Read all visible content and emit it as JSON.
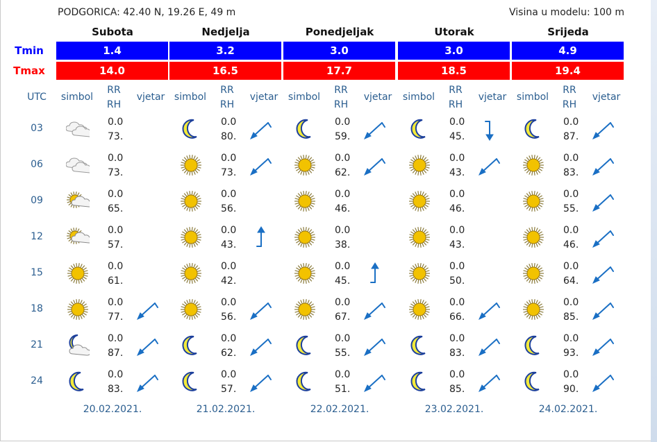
{
  "header": {
    "location": "PODGORICA: 42.40 N, 19.26 E, 49 m",
    "model_height": "Visina u modelu: 100 m"
  },
  "labels": {
    "tmin": "Tmin",
    "tmax": "Tmax",
    "utc": "UTC"
  },
  "col_labels": {
    "symbol": "simbol",
    "rr": "RR",
    "rh": "RH",
    "wind": "vjetar"
  },
  "colors": {
    "tmin_bg": "#0000ff",
    "tmax_bg": "#ff0000",
    "link_text": "#2a5d8f",
    "wind_arrow": "#1a6fc4"
  },
  "hours": [
    "03",
    "06",
    "09",
    "12",
    "15",
    "18",
    "21",
    "24"
  ],
  "days": [
    {
      "name": "Subota",
      "tmin": "1.4",
      "tmax": "14.0",
      "date": "20.02.2021.",
      "slots": [
        {
          "icon": "clouds-icon",
          "rr": "0.0",
          "rh": "73.",
          "wind": "none"
        },
        {
          "icon": "clouds-icon",
          "rr": "0.0",
          "rh": "73.",
          "wind": "none"
        },
        {
          "icon": "sun-cloud-icon",
          "rr": "0.0",
          "rh": "65.",
          "wind": "none"
        },
        {
          "icon": "sun-cloud-icon",
          "rr": "0.0",
          "rh": "57.",
          "wind": "none"
        },
        {
          "icon": "sun-icon",
          "rr": "0.0",
          "rh": "61.",
          "wind": "none"
        },
        {
          "icon": "sun-icon",
          "rr": "0.0",
          "rh": "77.",
          "wind": "ne"
        },
        {
          "icon": "moon-cloud-icon",
          "rr": "0.0",
          "rh": "87.",
          "wind": "ne"
        },
        {
          "icon": "moon-icon",
          "rr": "0.0",
          "rh": "83.",
          "wind": "ne"
        }
      ]
    },
    {
      "name": "Nedjelja",
      "tmin": "3.2",
      "tmax": "16.5",
      "date": "21.02.2021.",
      "slots": [
        {
          "icon": "moon-icon",
          "rr": "0.0",
          "rh": "80.",
          "wind": "ne"
        },
        {
          "icon": "sun-icon",
          "rr": "0.0",
          "rh": "73.",
          "wind": "ne"
        },
        {
          "icon": "sun-icon",
          "rr": "0.0",
          "rh": "56.",
          "wind": "none"
        },
        {
          "icon": "sun-icon",
          "rr": "0.0",
          "rh": "43.",
          "wind": "s"
        },
        {
          "icon": "sun-icon",
          "rr": "0.0",
          "rh": "42.",
          "wind": "none"
        },
        {
          "icon": "sun-icon",
          "rr": "0.0",
          "rh": "56.",
          "wind": "ne"
        },
        {
          "icon": "moon-icon",
          "rr": "0.0",
          "rh": "62.",
          "wind": "ne"
        },
        {
          "icon": "moon-icon",
          "rr": "0.0",
          "rh": "57.",
          "wind": "ne"
        }
      ]
    },
    {
      "name": "Ponedjeljak",
      "tmin": "3.0",
      "tmax": "17.7",
      "date": "22.02.2021.",
      "slots": [
        {
          "icon": "moon-icon",
          "rr": "0.0",
          "rh": "59.",
          "wind": "ne"
        },
        {
          "icon": "sun-icon",
          "rr": "0.0",
          "rh": "62.",
          "wind": "ne"
        },
        {
          "icon": "sun-icon",
          "rr": "0.0",
          "rh": "46.",
          "wind": "none"
        },
        {
          "icon": "sun-icon",
          "rr": "0.0",
          "rh": "38.",
          "wind": "none"
        },
        {
          "icon": "sun-icon",
          "rr": "0.0",
          "rh": "45.",
          "wind": "s"
        },
        {
          "icon": "sun-icon",
          "rr": "0.0",
          "rh": "67.",
          "wind": "ne"
        },
        {
          "icon": "moon-icon",
          "rr": "0.0",
          "rh": "55.",
          "wind": "ne"
        },
        {
          "icon": "moon-icon",
          "rr": "0.0",
          "rh": "51.",
          "wind": "ne"
        }
      ]
    },
    {
      "name": "Utorak",
      "tmin": "3.0",
      "tmax": "18.5",
      "date": "23.02.2021.",
      "slots": [
        {
          "icon": "moon-icon",
          "rr": "0.0",
          "rh": "45.",
          "wind": "n"
        },
        {
          "icon": "sun-icon",
          "rr": "0.0",
          "rh": "43.",
          "wind": "ne"
        },
        {
          "icon": "sun-icon",
          "rr": "0.0",
          "rh": "46.",
          "wind": "none"
        },
        {
          "icon": "sun-icon",
          "rr": "0.0",
          "rh": "43.",
          "wind": "none"
        },
        {
          "icon": "sun-icon",
          "rr": "0.0",
          "rh": "50.",
          "wind": "none"
        },
        {
          "icon": "sun-icon",
          "rr": "0.0",
          "rh": "66.",
          "wind": "ne"
        },
        {
          "icon": "moon-icon",
          "rr": "0.0",
          "rh": "83.",
          "wind": "ne"
        },
        {
          "icon": "moon-icon",
          "rr": "0.0",
          "rh": "85.",
          "wind": "ne"
        }
      ]
    },
    {
      "name": "Srijeda",
      "tmin": "4.9",
      "tmax": "19.4",
      "date": "24.02.2021.",
      "slots": [
        {
          "icon": "moon-icon",
          "rr": "0.0",
          "rh": "87.",
          "wind": "ne"
        },
        {
          "icon": "sun-icon",
          "rr": "0.0",
          "rh": "83.",
          "wind": "ne"
        },
        {
          "icon": "sun-icon",
          "rr": "0.0",
          "rh": "55.",
          "wind": "ne"
        },
        {
          "icon": "sun-icon",
          "rr": "0.0",
          "rh": "46.",
          "wind": "ne"
        },
        {
          "icon": "sun-icon",
          "rr": "0.0",
          "rh": "64.",
          "wind": "ne"
        },
        {
          "icon": "sun-icon",
          "rr": "0.0",
          "rh": "85.",
          "wind": "ne"
        },
        {
          "icon": "moon-icon",
          "rr": "0.0",
          "rh": "93.",
          "wind": "ne"
        },
        {
          "icon": "moon-icon",
          "rr": "0.0",
          "rh": "90.",
          "wind": "ne"
        }
      ]
    }
  ]
}
